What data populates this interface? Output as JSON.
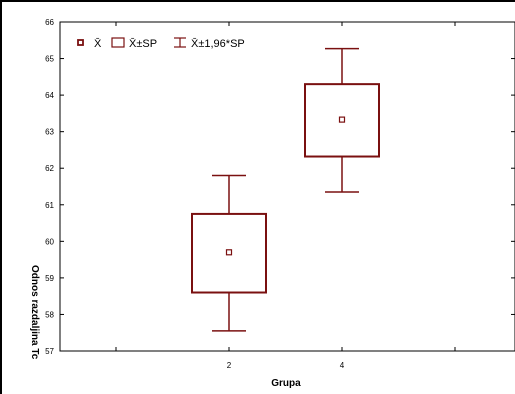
{
  "chart_data": {
    "type": "boxplot",
    "xlabel": "Grupa",
    "ylabel": "Odnos razdaljina Tc",
    "ylim": [
      57,
      66
    ],
    "yticks": [
      57,
      58,
      59,
      60,
      61,
      62,
      63,
      64,
      65,
      66
    ],
    "categories": [
      "2",
      "4"
    ],
    "boxes": [
      {
        "category": "2",
        "mean": 59.7,
        "box_low": 58.6,
        "box_high": 60.75,
        "whisker_low": 57.55,
        "whisker_high": 61.8
      },
      {
        "category": "4",
        "mean": 63.33,
        "box_low": 62.32,
        "box_high": 64.3,
        "whisker_low": 61.35,
        "whisker_high": 65.27
      }
    ],
    "legend": {
      "placement": "top-left",
      "items": [
        {
          "label": "X̄",
          "symbol": "mean-marker"
        },
        {
          "label": "X̄±SP",
          "symbol": "box"
        },
        {
          "label": "X̄±1,96*SP",
          "symbol": "whisker"
        }
      ]
    },
    "color": "#7a1010"
  }
}
